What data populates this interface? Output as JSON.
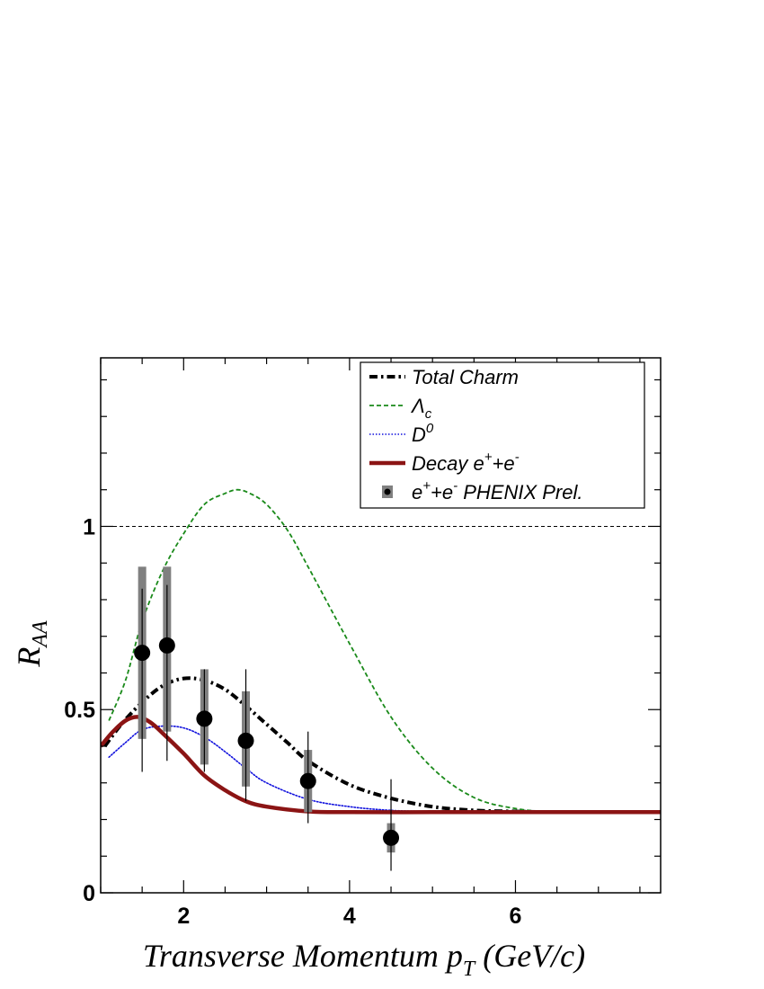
{
  "chart_data": {
    "type": "line",
    "xlabel": {
      "main": "Transverse Momentum p",
      "sub": "T",
      "unit": " (GeV/c)"
    },
    "ylabel": {
      "main": "R",
      "sub": "AA"
    },
    "xlim": [
      1.0,
      7.75
    ],
    "ylim": [
      0,
      1.46
    ],
    "x_ticks": [
      2,
      4,
      6
    ],
    "y_ticks": [
      0,
      0.5,
      1
    ],
    "y_tick_labels": [
      "0",
      "0.5",
      "1"
    ],
    "reference_line": 1.0,
    "colors": {
      "total_charm": "#000000",
      "lambda_c": "#1a8a1a",
      "d0": "#1010dd",
      "decay": "#8b1414",
      "data": "#000000",
      "syst_box": "#808080"
    },
    "series": [
      {
        "key": "total_charm",
        "name": "Total Charm",
        "style": "dashdot",
        "x": [
          1.05,
          1.25,
          1.5,
          1.75,
          2.0,
          2.25,
          2.5,
          2.75,
          3.0,
          3.25,
          3.5,
          4.0,
          4.5,
          5.0,
          5.5,
          6.0,
          6.5,
          7.0,
          7.75
        ],
        "y": [
          0.4,
          0.46,
          0.52,
          0.565,
          0.585,
          0.58,
          0.555,
          0.51,
          0.46,
          0.41,
          0.36,
          0.295,
          0.258,
          0.235,
          0.225,
          0.222,
          0.22,
          0.22,
          0.22
        ]
      },
      {
        "key": "lambda_c",
        "name": "Λc",
        "style": "dashed",
        "x": [
          1.1,
          1.3,
          1.5,
          1.75,
          2.0,
          2.25,
          2.5,
          2.65,
          2.8,
          3.0,
          3.25,
          3.5,
          4.0,
          4.5,
          5.0,
          5.5,
          6.0,
          6.5,
          7.0,
          7.75
        ],
        "y": [
          0.47,
          0.58,
          0.74,
          0.88,
          0.98,
          1.06,
          1.09,
          1.1,
          1.09,
          1.06,
          0.99,
          0.89,
          0.68,
          0.48,
          0.34,
          0.26,
          0.23,
          0.22,
          0.22,
          0.22
        ]
      },
      {
        "key": "d0",
        "name": "D0",
        "style": "dotted",
        "x": [
          1.1,
          1.3,
          1.5,
          1.75,
          2.0,
          2.25,
          2.5,
          2.75,
          3.0,
          3.5,
          4.0,
          4.5,
          5.0,
          6.0,
          7.0,
          7.75
        ],
        "y": [
          0.37,
          0.41,
          0.445,
          0.455,
          0.45,
          0.425,
          0.385,
          0.34,
          0.3,
          0.255,
          0.235,
          0.225,
          0.222,
          0.22,
          0.22,
          0.22
        ]
      },
      {
        "key": "decay",
        "name": "Decay e+ + e-",
        "style": "solid",
        "x": [
          1.0,
          1.15,
          1.3,
          1.45,
          1.6,
          1.75,
          2.0,
          2.25,
          2.5,
          2.75,
          3.0,
          3.5,
          4.0,
          5.0,
          6.0,
          7.75
        ],
        "y": [
          0.4,
          0.44,
          0.47,
          0.48,
          0.465,
          0.435,
          0.38,
          0.32,
          0.28,
          0.25,
          0.235,
          0.222,
          0.22,
          0.22,
          0.22,
          0.22
        ]
      }
    ],
    "data_points": {
      "name": "e+ + e- PHENIX Prel.",
      "x": [
        1.5,
        1.8,
        2.25,
        2.75,
        3.5,
        4.5
      ],
      "y": [
        0.655,
        0.675,
        0.475,
        0.415,
        0.305,
        0.15
      ],
      "stat_low": [
        0.33,
        0.36,
        0.33,
        0.25,
        0.19,
        0.06
      ],
      "stat_high": [
        0.83,
        0.84,
        0.61,
        0.61,
        0.44,
        0.31
      ],
      "syst_low": [
        0.42,
        0.44,
        0.35,
        0.29,
        0.22,
        0.11
      ],
      "syst_high": [
        0.89,
        0.89,
        0.61,
        0.55,
        0.39,
        0.19
      ]
    },
    "legend": {
      "placement": "top-right",
      "entries": [
        {
          "key": "total_charm",
          "label": "Total Charm"
        },
        {
          "key": "lambda_c",
          "label": "Λ",
          "sub": "c"
        },
        {
          "key": "d0",
          "label": "D",
          "sup": "0"
        },
        {
          "key": "decay",
          "label": "Decay e",
          "sup": "+",
          "mid": "+e",
          "sup2": "-"
        },
        {
          "key": "data",
          "label": "e",
          "sup": "+",
          "mid": "+e",
          "sup2": "-",
          "tail": " PHENIX Prel."
        }
      ]
    }
  }
}
